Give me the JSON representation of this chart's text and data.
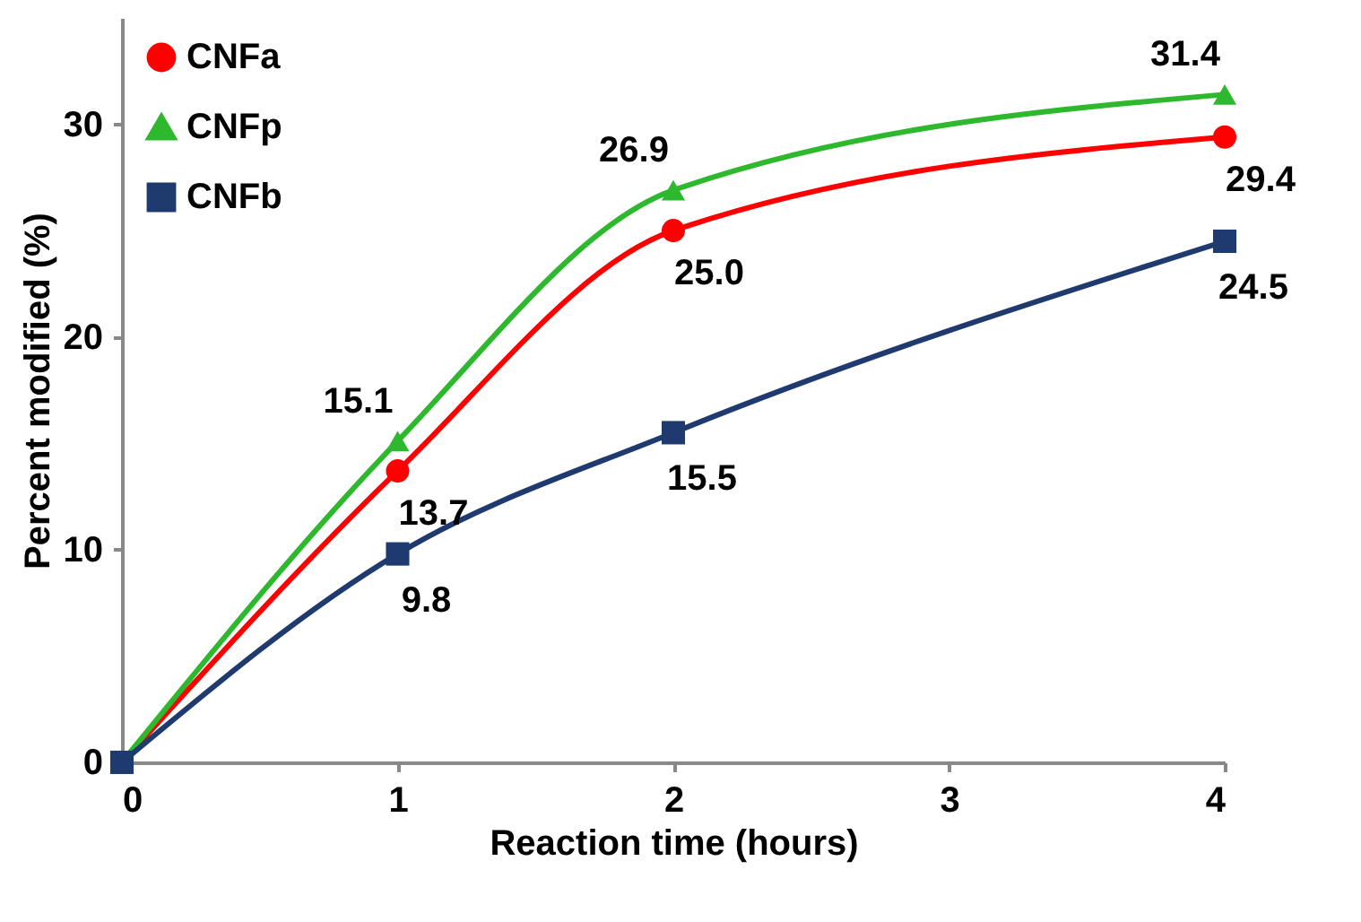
{
  "chart_data": {
    "type": "line",
    "xlabel": "Reaction time (hours)",
    "ylabel": "Percent modified (%)",
    "x": [
      0,
      1,
      2,
      4
    ],
    "xlim": [
      0,
      4
    ],
    "xticks": [
      0,
      1,
      2,
      3,
      4
    ],
    "ylim": [
      0,
      35
    ],
    "yticks": [
      0,
      10,
      20,
      30
    ],
    "series": [
      {
        "name": "CNFa",
        "color": "#ff0000",
        "marker": "circle",
        "values": [
          0,
          13.7,
          25.0,
          29.4
        ],
        "value_labels": [
          null,
          "13.7",
          "25.0",
          "29.4"
        ]
      },
      {
        "name": "CNFp",
        "color": "#2db82d",
        "marker": "triangle",
        "values": [
          0,
          15.1,
          26.9,
          31.4
        ],
        "value_labels": [
          null,
          "15.1",
          "26.9",
          "31.4"
        ]
      },
      {
        "name": "CNFb",
        "color": "#1f3a6e",
        "marker": "square",
        "values": [
          0,
          9.8,
          15.5,
          24.5
        ],
        "value_labels": [
          null,
          "9.8",
          "15.5",
          "24.5"
        ]
      }
    ],
    "grid": false,
    "legend": "top left"
  }
}
